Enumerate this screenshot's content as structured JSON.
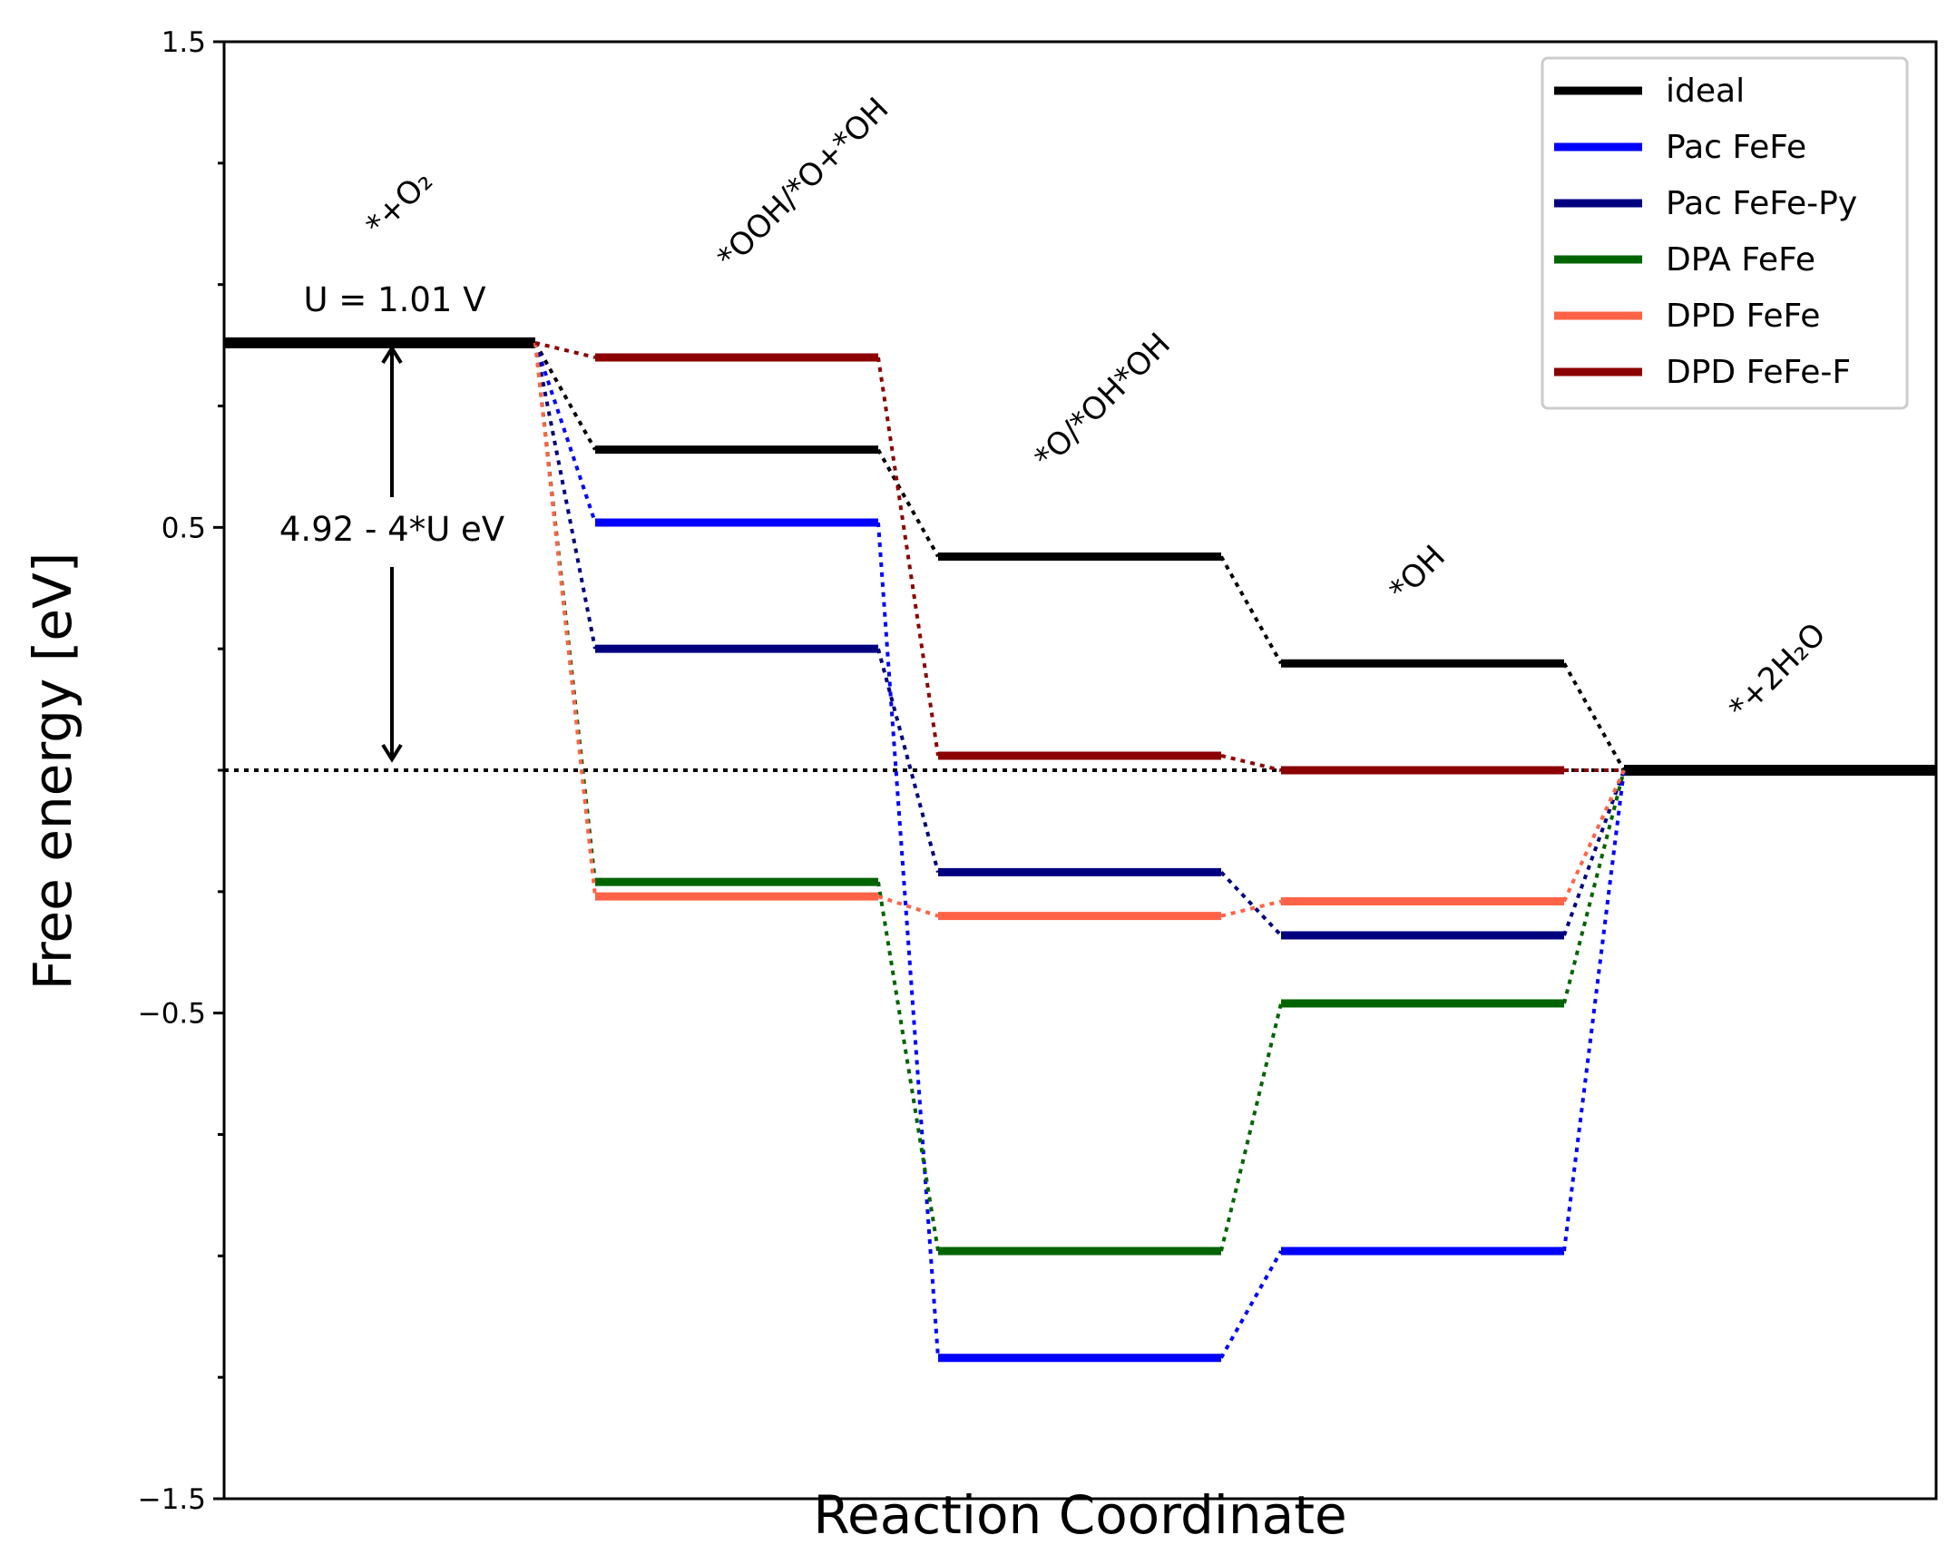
{
  "chart_data": {
    "type": "line",
    "title": "",
    "xlabel": "Reaction Coordinate",
    "ylabel": "Free energy [eV]",
    "ylim": [
      -1.5,
      1.5
    ],
    "yticks": [
      1.5,
      0.5,
      -0.5,
      -1.5
    ],
    "ytick_labels": [
      "1.5",
      "0.5",
      "−0.5",
      "−1.5"
    ],
    "grid": false,
    "legend_position": "top-right",
    "steps": [
      {
        "label": "*+O₂"
      },
      {
        "label": "*OOH/*O+*OH"
      },
      {
        "label": "*O/*OH*OH"
      },
      {
        "label": "*OH"
      },
      {
        "label": "*+2H₂O"
      }
    ],
    "series": [
      {
        "name": "ideal",
        "color": "#000000",
        "values": [
          0.88,
          0.66,
          0.44,
          0.22,
          0.0
        ]
      },
      {
        "name": "Pac FeFe",
        "color": "#0000ff",
        "values": [
          0.88,
          0.51,
          -1.21,
          -0.99,
          0.0
        ]
      },
      {
        "name": "Pac FeFe-Py",
        "color": "#00007f",
        "values": [
          0.88,
          0.25,
          -0.21,
          -0.34,
          0.0
        ]
      },
      {
        "name": "DPA FeFe",
        "color": "#006400",
        "values": [
          0.88,
          -0.23,
          -0.99,
          -0.48,
          0.0
        ]
      },
      {
        "name": "DPD FeFe",
        "color": "#ff6347",
        "values": [
          0.88,
          -0.26,
          -0.3,
          -0.27,
          0.0
        ]
      },
      {
        "name": "DPD FeFe-F",
        "color": "#8b0000",
        "values": [
          0.88,
          0.85,
          0.03,
          0.0,
          0.0
        ]
      }
    ],
    "annotations": {
      "potential_label": "U = 1.01 V",
      "gap_label": "4.92 - 4*U eV",
      "gap_from": 0.88,
      "gap_to": 0.0,
      "reference_line": 0.0
    }
  }
}
